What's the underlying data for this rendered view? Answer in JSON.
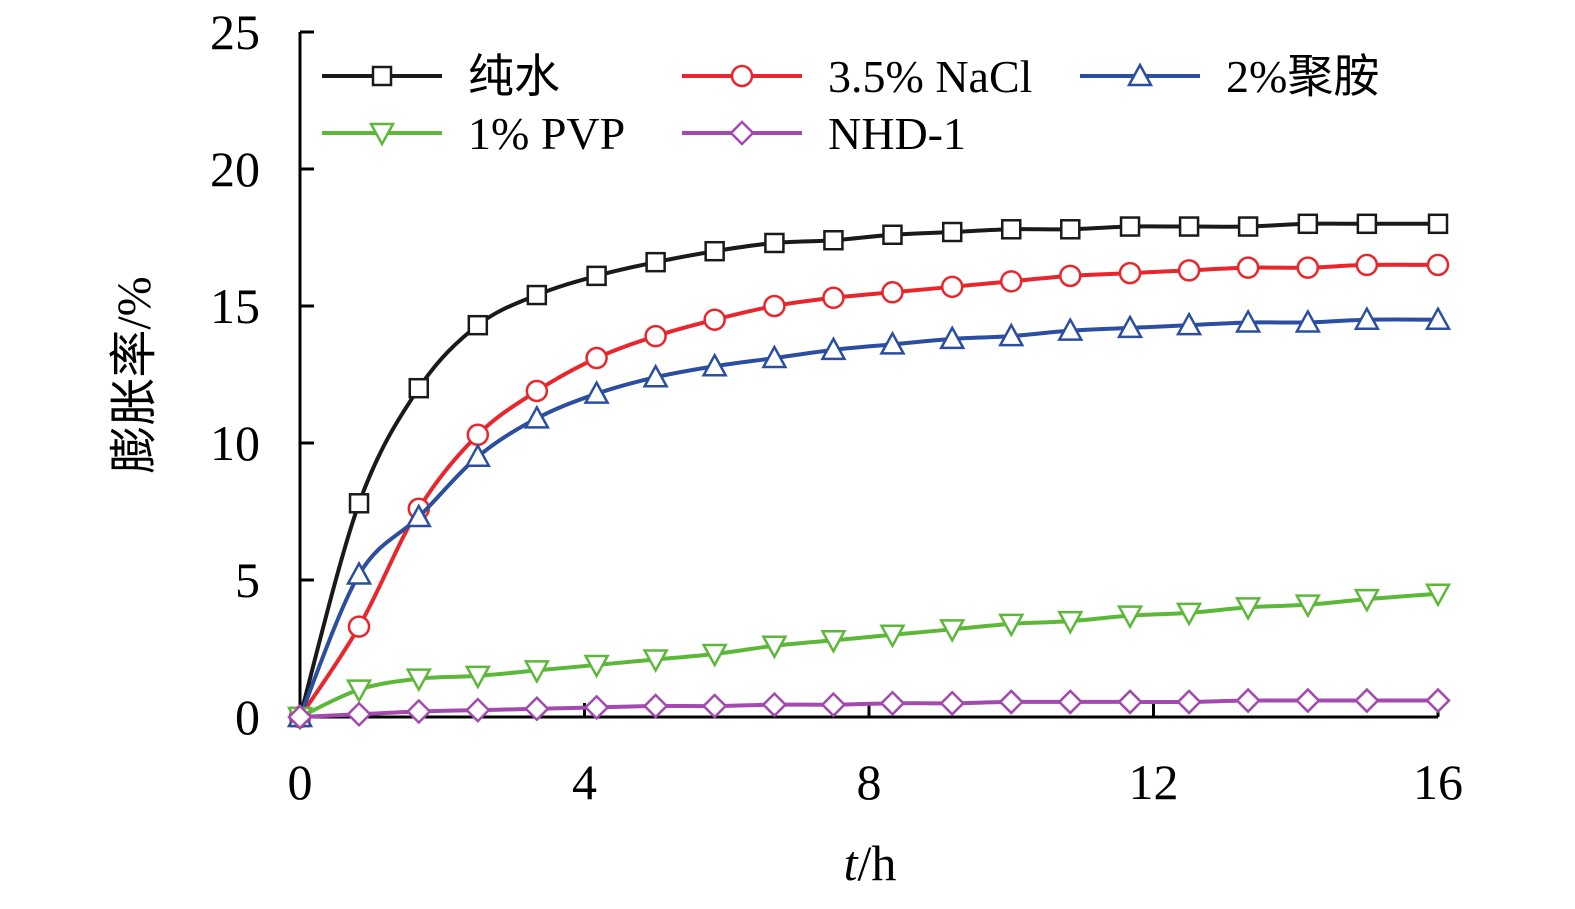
{
  "chart_data": {
    "type": "line",
    "title": "",
    "xlabel_italic": "t",
    "xlabel_rest": "/h",
    "ylabel": "膨胀率/%",
    "xlim": [
      0,
      16
    ],
    "ylim": [
      0,
      25
    ],
    "x_ticks": [
      0,
      4,
      8,
      12,
      16
    ],
    "y_ticks": [
      0,
      5,
      10,
      15,
      20,
      25
    ],
    "x_tick_labels": [
      "0",
      "4",
      "8",
      "12",
      "16"
    ],
    "y_tick_labels": [
      "0",
      "5",
      "10",
      "15",
      "20",
      "25"
    ],
    "grid": false,
    "legend_position": "top",
    "x": [
      0,
      0.83,
      1.67,
      2.5,
      3.33,
      4.17,
      5.0,
      5.83,
      6.67,
      7.5,
      8.33,
      9.17,
      10.0,
      10.83,
      11.67,
      12.5,
      13.33,
      14.17,
      15.0,
      16.0
    ],
    "series": [
      {
        "name": "纯水",
        "color": "#1a1a1a",
        "marker": "square",
        "values": [
          0,
          7.8,
          12.0,
          14.3,
          15.4,
          16.1,
          16.6,
          17.0,
          17.3,
          17.4,
          17.6,
          17.7,
          17.8,
          17.8,
          17.9,
          17.9,
          17.9,
          18.0,
          18.0,
          18.0
        ]
      },
      {
        "name": "3.5% NaCl",
        "color": "#e8262b",
        "marker": "circle",
        "values": [
          0,
          3.3,
          7.6,
          10.3,
          11.9,
          13.1,
          13.9,
          14.5,
          15.0,
          15.3,
          15.5,
          15.7,
          15.9,
          16.1,
          16.2,
          16.3,
          16.4,
          16.4,
          16.5,
          16.5
        ]
      },
      {
        "name": "2%聚胺",
        "color": "#2b4ea1",
        "marker": "triangle-up",
        "values": [
          0,
          5.2,
          7.3,
          9.5,
          10.9,
          11.8,
          12.4,
          12.8,
          13.1,
          13.4,
          13.6,
          13.8,
          13.9,
          14.1,
          14.2,
          14.3,
          14.4,
          14.4,
          14.5,
          14.5
        ]
      },
      {
        "name": "1% PVP",
        "color": "#5db83a",
        "marker": "triangle-down",
        "values": [
          0,
          1.0,
          1.4,
          1.5,
          1.7,
          1.9,
          2.1,
          2.3,
          2.6,
          2.8,
          3.0,
          3.2,
          3.4,
          3.5,
          3.7,
          3.8,
          4.0,
          4.1,
          4.3,
          4.5
        ]
      },
      {
        "name": "NHD-1",
        "color": "#a349b0",
        "marker": "diamond",
        "values": [
          0,
          0.1,
          0.2,
          0.25,
          0.3,
          0.35,
          0.4,
          0.4,
          0.45,
          0.45,
          0.5,
          0.5,
          0.55,
          0.55,
          0.55,
          0.55,
          0.6,
          0.6,
          0.6,
          0.6
        ]
      }
    ]
  }
}
